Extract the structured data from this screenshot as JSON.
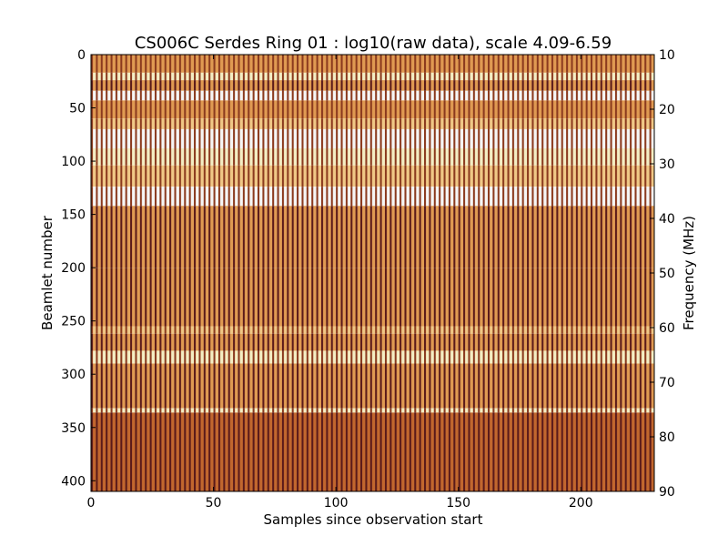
{
  "chart_data": {
    "type": "heatmap",
    "title": "CS006C Serdes Ring 01 : log10(raw data), scale 4.09-6.59",
    "xlabel": "Samples since observation start",
    "ylabel": "Beamlet number",
    "y2label": "Frequency (MHz)",
    "xlim": [
      0,
      230
    ],
    "ylim": [
      410,
      0
    ],
    "y2lim": [
      10,
      90
    ],
    "x_ticks": [
      0,
      50,
      100,
      150,
      200
    ],
    "y_ticks": [
      0,
      50,
      100,
      150,
      200,
      250,
      300,
      350,
      400
    ],
    "y2_ticks": [
      10,
      20,
      30,
      40,
      50,
      60,
      70,
      80,
      90
    ],
    "scale": [
      4.09,
      6.59
    ],
    "colormap": [
      "#2a0a10",
      "#5a1a1a",
      "#8b3a1e",
      "#c2672e",
      "#e09a52",
      "#f0c886",
      "#f4eec4",
      "#f6f6f6"
    ],
    "x_period": 2,
    "band_levels": [
      {
        "y0": 0,
        "y1": 17,
        "level": 0.62
      },
      {
        "y0": 17,
        "y1": 24,
        "level": 0.88
      },
      {
        "y0": 24,
        "y1": 34,
        "level": 0.52
      },
      {
        "y0": 34,
        "y1": 43,
        "level": 0.95
      },
      {
        "y0": 43,
        "y1": 60,
        "level": 0.64
      },
      {
        "y0": 60,
        "y1": 70,
        "level": 0.78
      },
      {
        "y0": 70,
        "y1": 88,
        "level": 0.96
      },
      {
        "y0": 88,
        "y1": 104,
        "level": 0.87
      },
      {
        "y0": 104,
        "y1": 124,
        "level": 0.72
      },
      {
        "y0": 124,
        "y1": 142,
        "level": 0.98
      },
      {
        "y0": 142,
        "y1": 200,
        "level": 0.6
      },
      {
        "y0": 200,
        "y1": 255,
        "level": 0.58
      },
      {
        "y0": 255,
        "y1": 262,
        "level": 0.74
      },
      {
        "y0": 262,
        "y1": 278,
        "level": 0.6
      },
      {
        "y0": 278,
        "y1": 290,
        "level": 0.8
      },
      {
        "y0": 290,
        "y1": 332,
        "level": 0.58
      },
      {
        "y0": 332,
        "y1": 336,
        "level": 0.8
      },
      {
        "y0": 336,
        "y1": 410,
        "level": 0.45
      }
    ]
  }
}
